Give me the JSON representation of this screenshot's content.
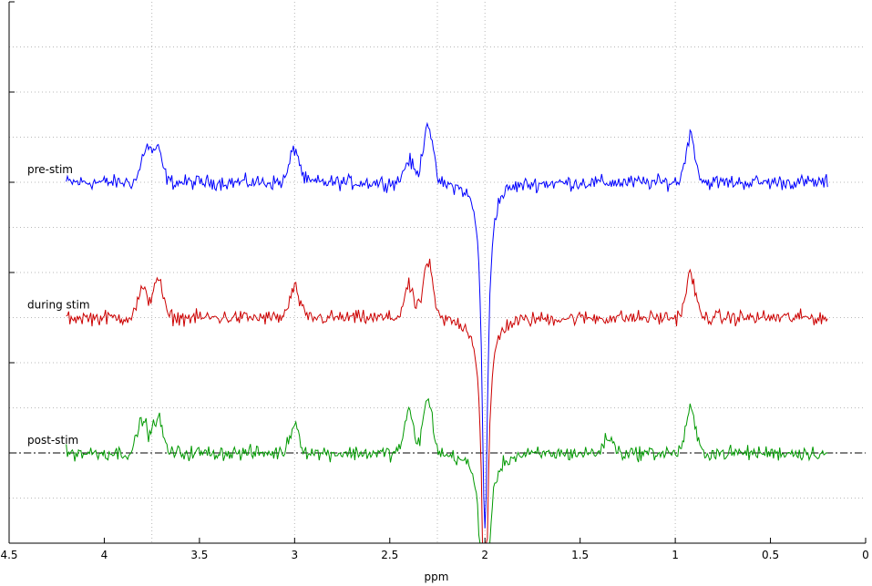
{
  "chart_data": {
    "type": "line",
    "title": "",
    "xlabel": "ppm",
    "ylabel": "",
    "xlim": [
      4.5,
      0
    ],
    "x_reversed": true,
    "ylim": [
      -2,
      10
    ],
    "x_ticks": [
      4.5,
      4,
      3.5,
      3,
      2.5,
      2,
      1.5,
      1,
      0.5,
      0
    ],
    "x_tick_labels": [
      "4.5",
      "4",
      "3.5",
      "3",
      "2.5",
      "2",
      "1.5",
      "1",
      "0.5",
      "0"
    ],
    "x_grid": [
      3.75,
      3.0,
      2.25,
      2.0,
      1.0
    ],
    "y_grid": [
      9,
      8,
      7,
      6,
      5,
      4,
      3,
      2,
      1,
      0,
      -1
    ],
    "y_ticks": [
      10,
      8,
      6,
      4,
      2,
      0
    ],
    "baseline": {
      "y": 0,
      "style": "dash-dot",
      "color": "#000000"
    },
    "grid": true,
    "series": [
      {
        "name": "pre-stim",
        "color": "#0000ff",
        "offset": 6,
        "x_range": [
          4.2,
          0.2
        ],
        "peaks": [
          {
            "x": 3.78,
            "height": 0.75
          },
          {
            "x": 3.72,
            "height": 0.7
          },
          {
            "x": 3.0,
            "height": 0.75
          },
          {
            "x": 2.4,
            "height": 0.5
          },
          {
            "x": 2.3,
            "height": 1.35
          },
          {
            "x": 0.92,
            "height": 1.05
          }
        ],
        "dip": {
          "x": 2.0,
          "depth": -7.8
        }
      },
      {
        "name": "during stim",
        "color": "#cc0000",
        "offset": 3,
        "x_range": [
          4.2,
          0.2
        ],
        "peaks": [
          {
            "x": 3.8,
            "height": 0.6
          },
          {
            "x": 3.72,
            "height": 0.9
          },
          {
            "x": 3.0,
            "height": 0.65
          },
          {
            "x": 2.4,
            "height": 0.7
          },
          {
            "x": 2.3,
            "height": 1.25
          },
          {
            "x": 0.92,
            "height": 0.95
          }
        ],
        "dip": {
          "x": 2.0,
          "depth": -7.5
        }
      },
      {
        "name": "post-stim",
        "color": "#009900",
        "offset": 0,
        "x_range": [
          4.2,
          0.2
        ],
        "peaks": [
          {
            "x": 3.8,
            "height": 0.75
          },
          {
            "x": 3.72,
            "height": 0.8
          },
          {
            "x": 3.0,
            "height": 0.65
          },
          {
            "x": 2.4,
            "height": 0.9
          },
          {
            "x": 2.3,
            "height": 1.2
          },
          {
            "x": 1.35,
            "height": 0.35
          },
          {
            "x": 0.92,
            "height": 0.95
          }
        ],
        "dip": {
          "x": 2.0,
          "depth": -7.0
        }
      }
    ]
  }
}
